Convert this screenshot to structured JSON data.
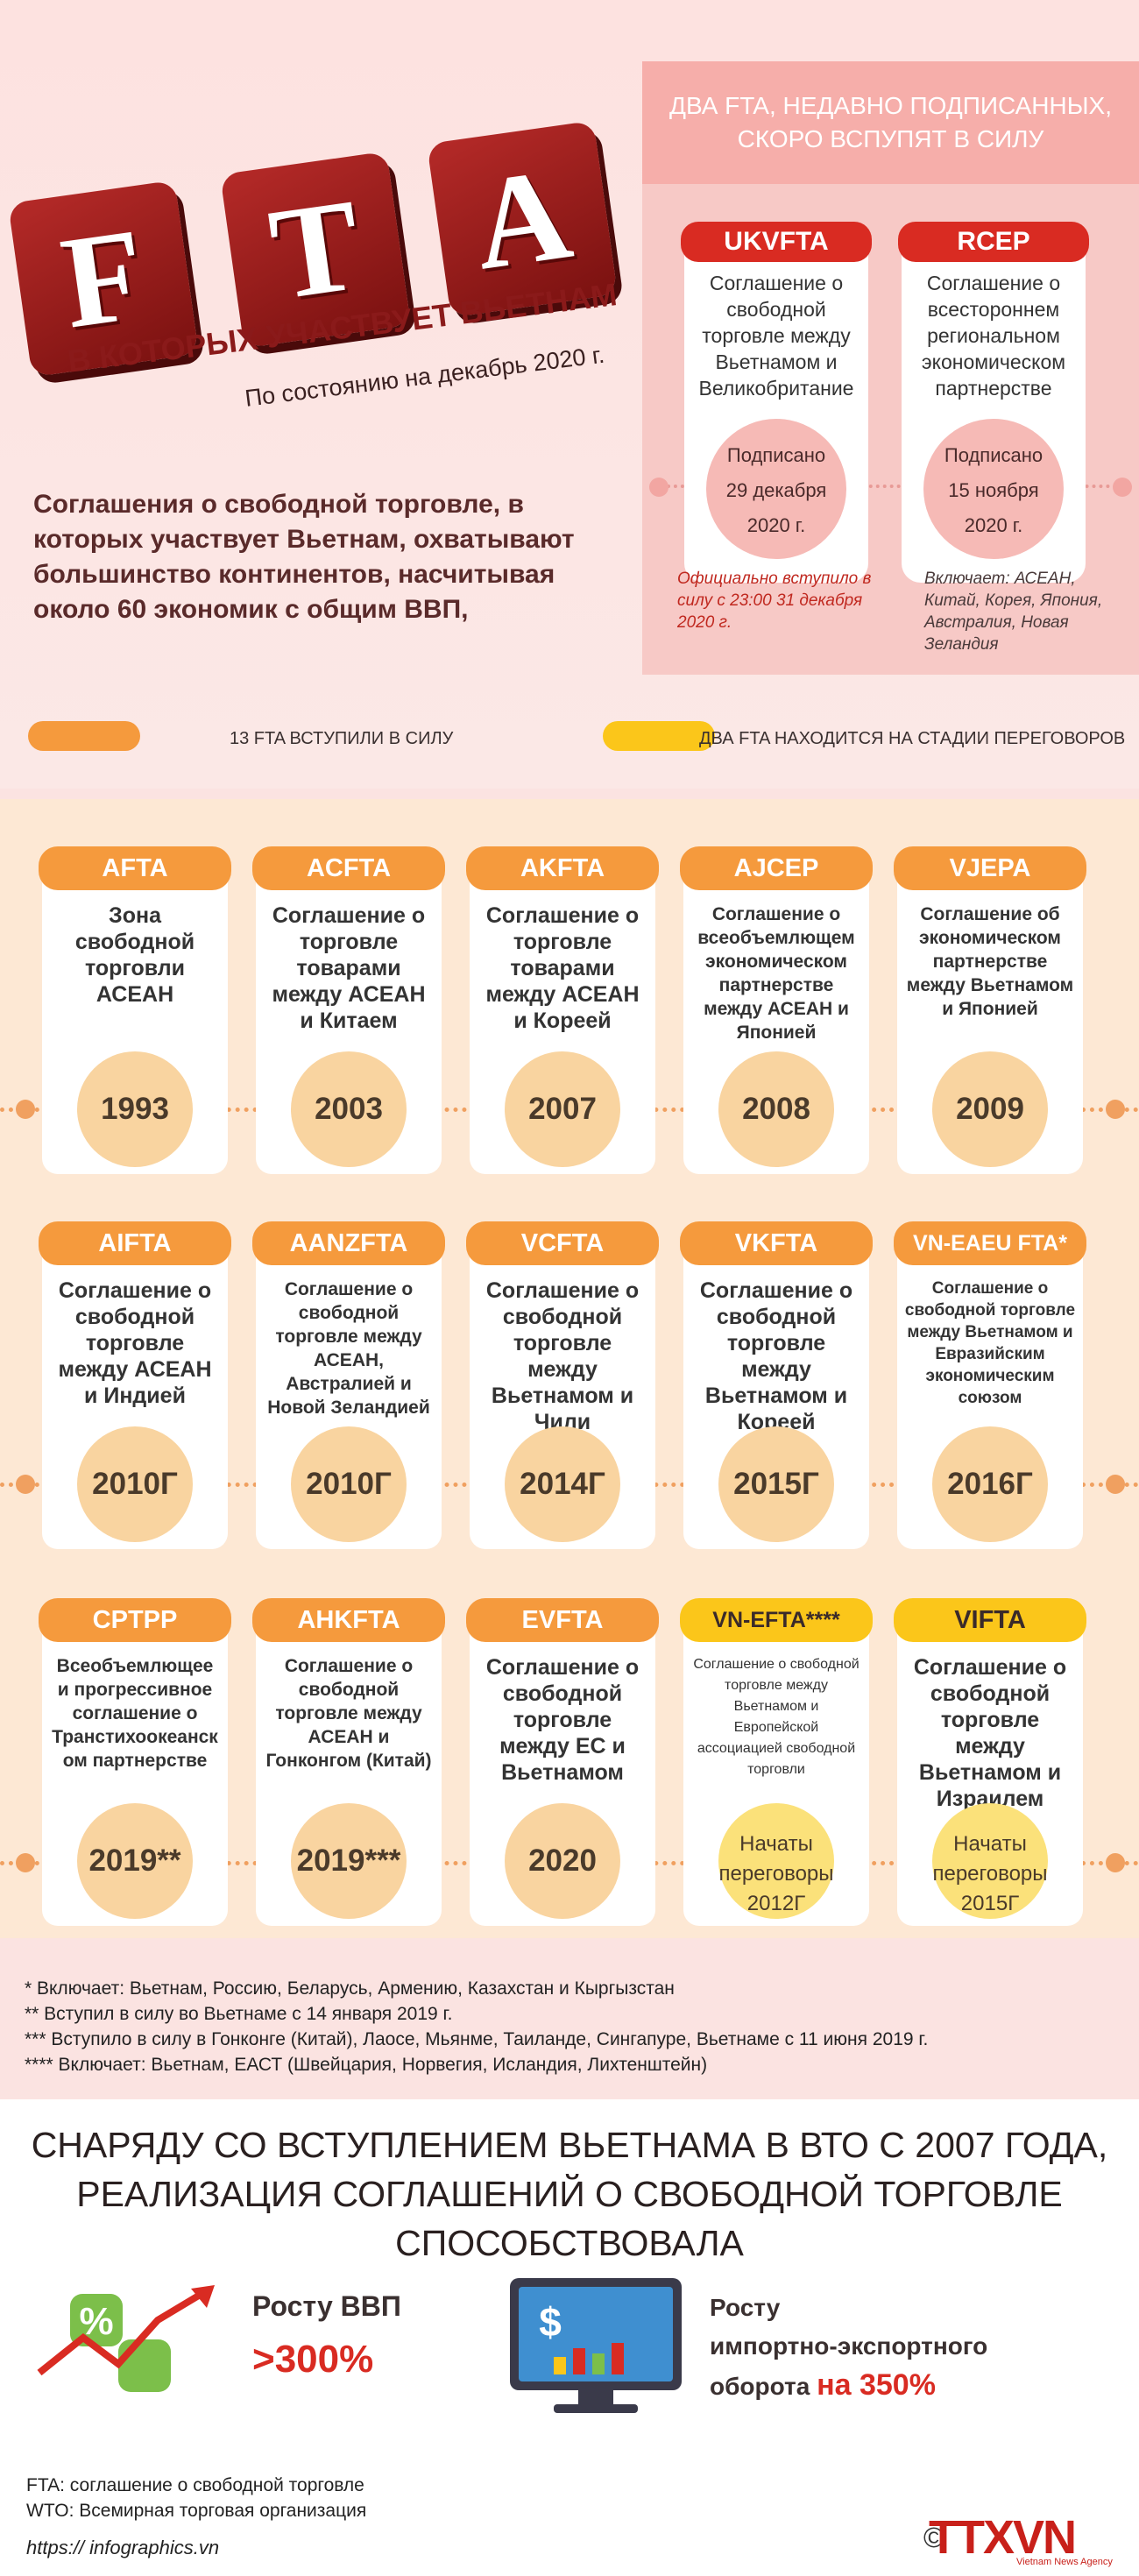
{
  "header": {
    "letters": [
      "F",
      "T",
      "A"
    ],
    "subtitle": "В КОТОРЫХ УЧАСТВУЕТ ВЬЕТНАМ",
    "date_note": "По состоянию на декабрь 2020 г.",
    "intro": "Соглашения о свободной торговле, в которых участвует Вьетнам, охватывают большинство континентов, насчитывая около 60 экономик с общим ВВП,"
  },
  "recent": {
    "heading": "ДВА FTA, НЕДАВНО ПОДПИСАННЫХ, СКОРО ВСПУПЯТ В СИЛУ",
    "items": [
      {
        "code": "UKVFTA",
        "name": "Соглашение о свободной торговле между Вьетнамом и Великобритание",
        "signed_label": "Подписано",
        "signed_date": "29 декабря",
        "signed_year": "2020 г.",
        "note": "Официально вступило в силу с 23:00 31 декабря 2020 г."
      },
      {
        "code": "RCEP",
        "name": "Соглашение о всестороннем региональном экономическом партнерстве",
        "signed_label": "Подписано",
        "signed_date": "15 ноября",
        "signed_year": "2020 г.",
        "note": "Включает: АСЕАН, Китай, Корея, Япония, Австралия, Новая Зеландия"
      }
    ]
  },
  "legend": {
    "in_force": "13 FTA ВСТУПИЛИ В СИЛУ",
    "negotiating": "ДВА FTA НАХОДИТСЯ НА СТАДИИ ПЕРЕГОВОРОВ",
    "in_force_color": "#f59a3d",
    "negotiating_color": "#fbc61a"
  },
  "agreements": [
    {
      "code": "AFTA",
      "desc": "Зона свободной торговли АСЕАН",
      "year": "1993",
      "status": "in_force"
    },
    {
      "code": "ACFTA",
      "desc": "Соглашение о торговле товарами между АСЕАН и Китаем",
      "year": "2003",
      "status": "in_force"
    },
    {
      "code": "AKFTA",
      "desc": "Соглашение о торговле товарами между АСЕАН и Кореей",
      "year": "2007",
      "status": "in_force"
    },
    {
      "code": "AJCEP",
      "desc": "Соглашение о всеобъемлющем экономическом партнерстве между АСЕАН и Японией",
      "year": "2008",
      "status": "in_force"
    },
    {
      "code": "VJEPA",
      "desc": "Соглашение об экономическом партнерстве между Вьетнамом и Японией",
      "year": "2009",
      "status": "in_force"
    },
    {
      "code": "AIFTA",
      "desc": "Соглашение о свободной торговле между АСЕАН и Индией",
      "year": "2010Г",
      "status": "in_force"
    },
    {
      "code": "AANZFTA",
      "desc": "Соглашение о свободной торговле между АСЕАН, Австралией и Новой Зеландией",
      "year": "2010Г",
      "status": "in_force"
    },
    {
      "code": "VCFTA",
      "desc": "Соглашение о свободной торговле между Вьетнамом и Чили",
      "year": "2014Г",
      "status": "in_force"
    },
    {
      "code": "VKFTA",
      "desc": "Соглашение о свободной торговле между Вьетнамом и Кореей",
      "year": "2015Г",
      "status": "in_force"
    },
    {
      "code": "VN-EAEU FTA*",
      "desc": "Соглашение о свободной торговле между Вьетнамом и Евразийским экономическим союзом",
      "year": "2016Г",
      "status": "in_force"
    },
    {
      "code": "CPTPP",
      "desc": "Всеобъемлющее и прогрессивное соглашение о Транстихоокеанском партнерстве",
      "year": "2019**",
      "status": "in_force"
    },
    {
      "code": "AHKFTA",
      "desc": "Соглашение о свободной торговле между АСЕАН и Гонконгом (Китай)",
      "year": "2019***",
      "status": "in_force"
    },
    {
      "code": "EVFTA",
      "desc": "Соглашение о свободной торговле между ЕС и Вьетнамом",
      "year": "2020",
      "status": "in_force"
    },
    {
      "code": "VN-EFTA****",
      "desc": "Соглашение о свободной торговле между Вьетнамом и Европейской ассоциацией свободной торговли",
      "year": "Начаты переговоры 2012Г",
      "status": "negotiating"
    },
    {
      "code": "VIFTA",
      "desc": "Соглашение о свободной торговле между Вьетнамом и Израилем",
      "year": "Начаты переговоры 2015Г",
      "status": "negotiating"
    }
  ],
  "footnotes": [
    "* Включает: Вьетнам, Россию, Беларусь, Армению, Казахстан и Кыргызстан",
    "** Вступил в силу во Вьетнаме с 14 января 2019 г.",
    "*** Вступило в силу в Гонконге (Китай), Лаосе, Мьянме, Таиланде, Сингапуре, Вьетнаме с 11 июня 2019 г.",
    "**** Включает: Вьетнам, ЕАСТ (Швейцария, Норвегия, Исландия, Лихтенштейн)"
  ],
  "summary": {
    "heading": "СНАРЯДУ СО ВСТУПЛЕНИЕМ ВЬЕТНАМА В ВТО С 2007 ГОДА, РЕАЛИЗАЦИЯ СОГЛАШЕНИЙ О СВОБОДНОЙ ТОРГОВЛЕ СПОСОБСТВОВАЛА",
    "gdp_label": "Росту ВВП",
    "gdp_value": ">300%",
    "trade_label_1": "Росту",
    "trade_label_2": "импортно-экспортного",
    "trade_label_3": "оборота",
    "trade_value": "на 350%",
    "percent_icon": "%",
    "dollar_icon": "$"
  },
  "glossary": {
    "fta": "FTA: соглашение о свободной торговле",
    "wto": "WTO: Всемирная торговая организация"
  },
  "footer": {
    "site": "https:// infographics.vn",
    "copyright": "©",
    "logo": "TTXVN",
    "logo_sub": "Vietnam News Agency"
  }
}
